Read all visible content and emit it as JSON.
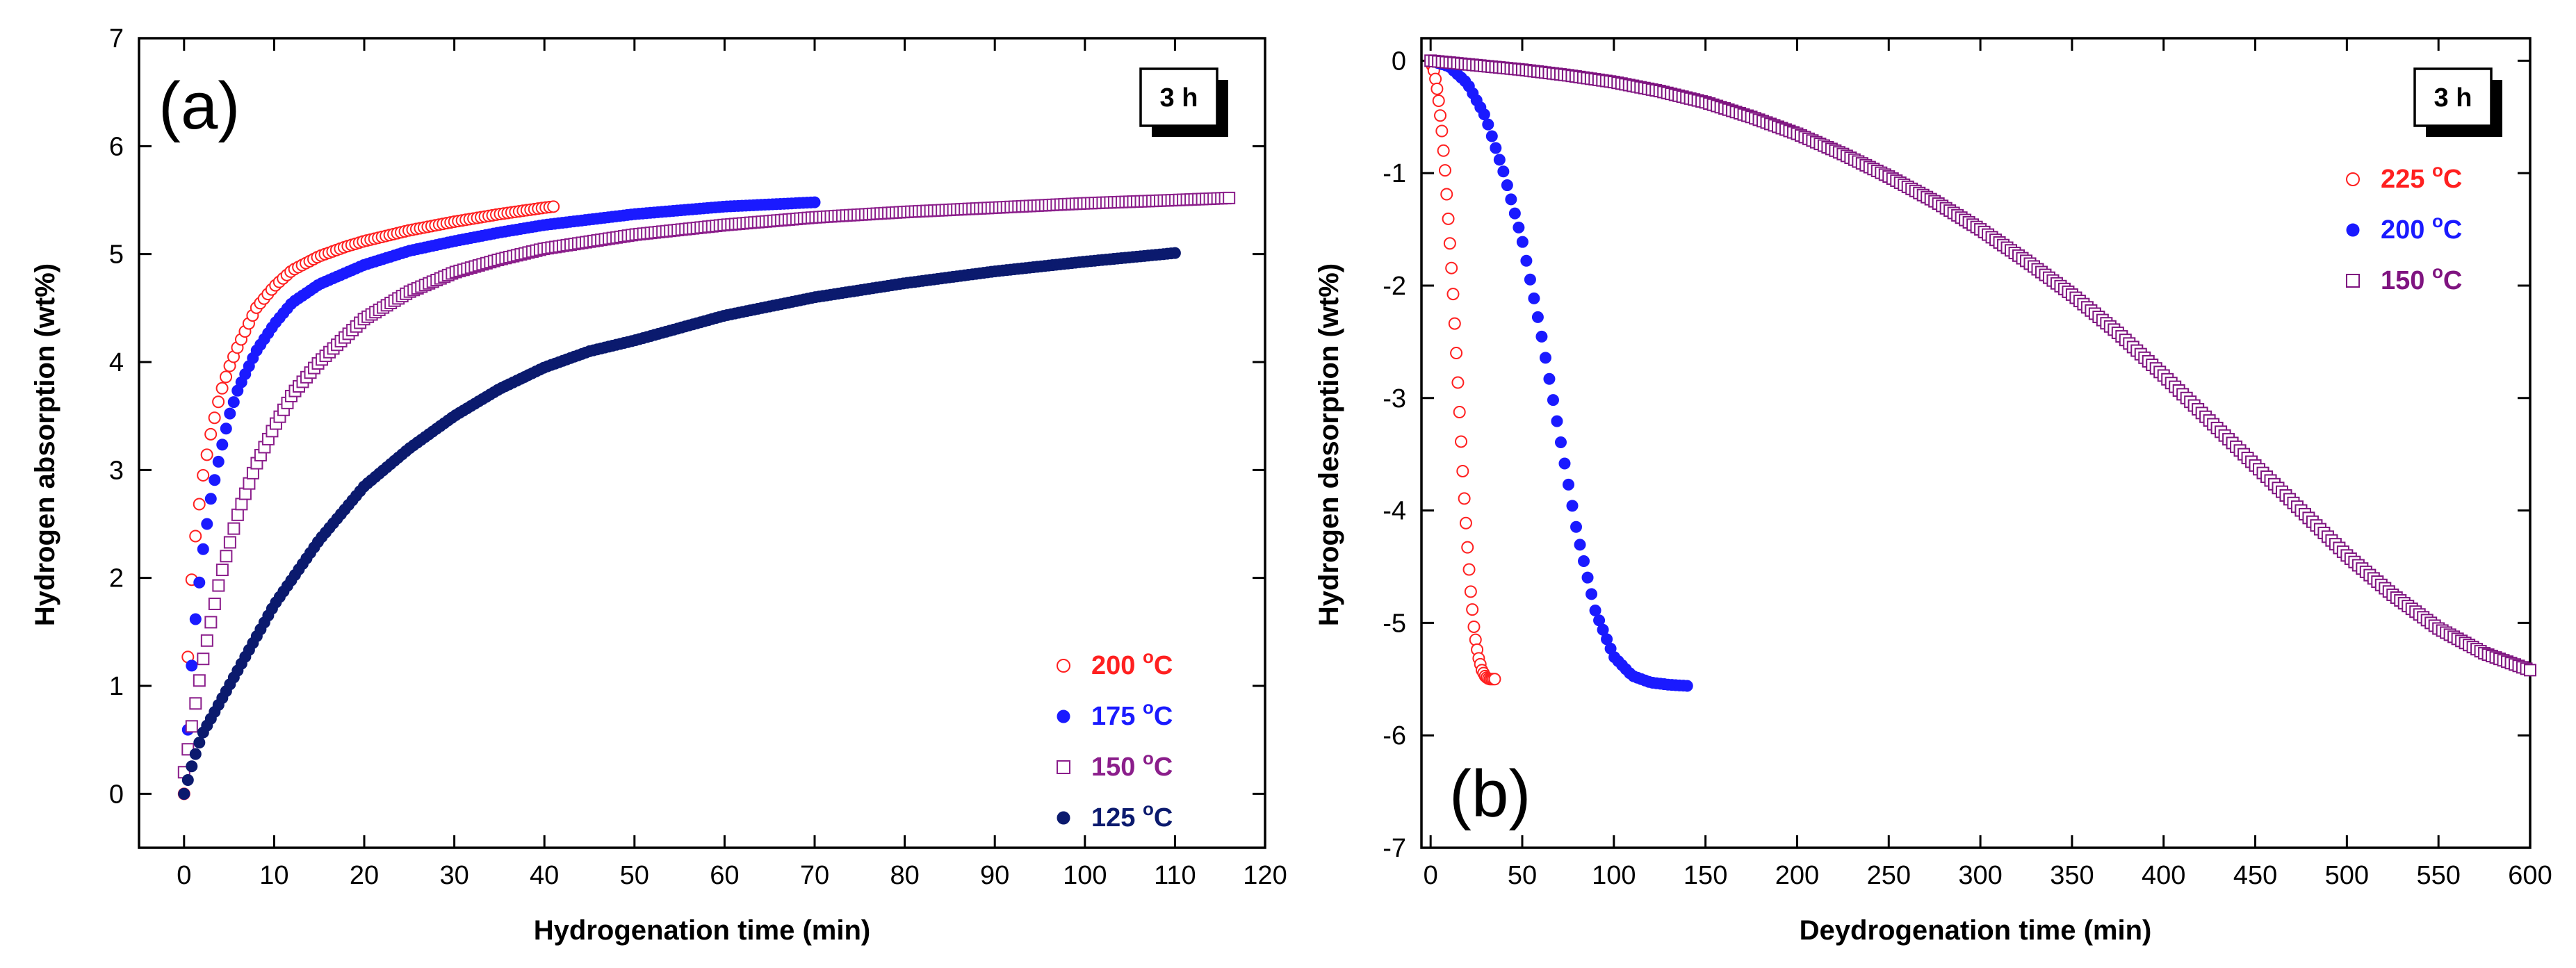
{
  "chart_data": [
    {
      "type": "scatter",
      "panel": "(a)",
      "badge": "3 h",
      "xlabel": "Hydrogenation time (min)",
      "ylabel": "Hydrogen absorption (wt%)",
      "xlim": [
        -5,
        120
      ],
      "ylim": [
        -0.5,
        7
      ],
      "xticks": [
        0,
        10,
        20,
        30,
        40,
        50,
        60,
        70,
        80,
        90,
        100,
        110,
        120
      ],
      "yticks": [
        0,
        1,
        2,
        3,
        4,
        5,
        6,
        7
      ],
      "legend_position": "bottom-right",
      "series": [
        {
          "name": "200 °C",
          "label_main": "200 ",
          "label_deg": "o",
          "label_unit": "C",
          "color": "#ff2020",
          "marker": "open-circle",
          "x": [
            0,
            0.5,
            1,
            2,
            3,
            4,
            5,
            6,
            8,
            10,
            12,
            15,
            18,
            20,
            25,
            30,
            35,
            40,
            41
          ],
          "y": [
            0,
            1.5,
            2.2,
            2.9,
            3.35,
            3.7,
            3.95,
            4.15,
            4.5,
            4.7,
            4.85,
            4.98,
            5.07,
            5.12,
            5.22,
            5.3,
            5.37,
            5.43,
            5.44
          ]
        },
        {
          "name": "175 °C",
          "label_main": "175 ",
          "label_deg": "o",
          "label_unit": "C",
          "color": "#1a1aff",
          "marker": "filled-circle",
          "x": [
            0,
            1,
            2,
            3,
            4,
            5,
            6,
            8,
            10,
            12,
            15,
            20,
            25,
            30,
            35,
            40,
            50,
            60,
            70
          ],
          "y": [
            0,
            1.4,
            2.2,
            2.75,
            3.15,
            3.5,
            3.75,
            4.1,
            4.35,
            4.55,
            4.72,
            4.9,
            5.03,
            5.12,
            5.2,
            5.27,
            5.37,
            5.44,
            5.48
          ]
        },
        {
          "name": "150 °C",
          "label_main": "150 ",
          "label_deg": "o",
          "label_unit": "C",
          "color": "#8b1e8b",
          "marker": "open-square",
          "x": [
            0,
            1,
            2,
            3,
            4,
            6,
            8,
            10,
            12,
            15,
            20,
            25,
            30,
            35,
            40,
            50,
            60,
            70,
            80,
            90,
            100,
            110,
            116
          ],
          "y": [
            0.2,
            0.7,
            1.2,
            1.6,
            2.0,
            2.6,
            3.05,
            3.4,
            3.7,
            4.0,
            4.4,
            4.65,
            4.83,
            4.95,
            5.05,
            5.18,
            5.27,
            5.34,
            5.39,
            5.43,
            5.47,
            5.5,
            5.52
          ]
        },
        {
          "name": "125 °C",
          "label_main": "125 ",
          "label_deg": "o",
          "label_unit": "C",
          "color": "#0b1a6e",
          "marker": "filled-circle",
          "x": [
            0,
            1,
            2,
            5,
            10,
            15,
            20,
            25,
            30,
            35,
            40,
            45,
            50,
            60,
            70,
            80,
            90,
            100,
            110
          ],
          "y": [
            0,
            0.3,
            0.55,
            1.0,
            1.75,
            2.35,
            2.85,
            3.2,
            3.5,
            3.75,
            3.95,
            4.1,
            4.2,
            4.43,
            4.6,
            4.73,
            4.84,
            4.93,
            5.01
          ]
        }
      ]
    },
    {
      "type": "scatter",
      "panel": "(b)",
      "badge": "3 h",
      "xlabel": "Deydrogenation time (min)",
      "ylabel": "Hydrogen desorption (wt%)",
      "xlim": [
        -5,
        600
      ],
      "ylim": [
        -7,
        0.2
      ],
      "xticks": [
        0,
        50,
        100,
        150,
        200,
        250,
        300,
        350,
        400,
        450,
        500,
        550,
        600
      ],
      "yticks": [
        0,
        -1,
        -2,
        -3,
        -4,
        -5,
        -6,
        -7
      ],
      "legend_position": "top-right",
      "series": [
        {
          "name": "225 °C",
          "label_main": "225 ",
          "label_deg": "o",
          "label_unit": "C",
          "color": "#ff2020",
          "marker": "open-circle",
          "x": [
            0,
            2,
            4,
            6,
            8,
            10,
            12,
            14,
            16,
            18,
            20,
            22,
            24,
            26,
            28,
            30,
            32,
            35
          ],
          "y": [
            0,
            -0.1,
            -0.3,
            -0.6,
            -1.0,
            -1.5,
            -2.0,
            -2.6,
            -3.2,
            -3.8,
            -4.3,
            -4.75,
            -5.1,
            -5.3,
            -5.42,
            -5.48,
            -5.5,
            -5.5
          ]
        },
        {
          "name": "200 °C",
          "label_main": "200 ",
          "label_deg": "o",
          "label_unit": "C",
          "color": "#1a1aff",
          "marker": "filled-circle",
          "x": [
            0,
            10,
            20,
            30,
            40,
            50,
            60,
            70,
            80,
            90,
            100,
            110,
            120,
            130,
            140
          ],
          "y": [
            0,
            -0.05,
            -0.2,
            -0.5,
            -1.0,
            -1.6,
            -2.4,
            -3.3,
            -4.2,
            -4.9,
            -5.3,
            -5.47,
            -5.53,
            -5.55,
            -5.56
          ]
        },
        {
          "name": "150 °C",
          "label_main": "150 ",
          "label_deg": "o",
          "label_unit": "C",
          "color": "#7f1480",
          "marker": "open-square",
          "x": [
            0,
            25,
            50,
            75,
            100,
            125,
            150,
            175,
            200,
            225,
            250,
            275,
            300,
            325,
            350,
            375,
            400,
            425,
            450,
            475,
            500,
            525,
            550,
            575,
            600
          ],
          "y": [
            0,
            -0.04,
            -0.08,
            -0.13,
            -0.19,
            -0.27,
            -0.37,
            -0.5,
            -0.65,
            -0.83,
            -1.03,
            -1.25,
            -1.5,
            -1.78,
            -2.08,
            -2.42,
            -2.8,
            -3.2,
            -3.6,
            -4.0,
            -4.4,
            -4.75,
            -5.05,
            -5.27,
            -5.42
          ]
        }
      ]
    }
  ]
}
